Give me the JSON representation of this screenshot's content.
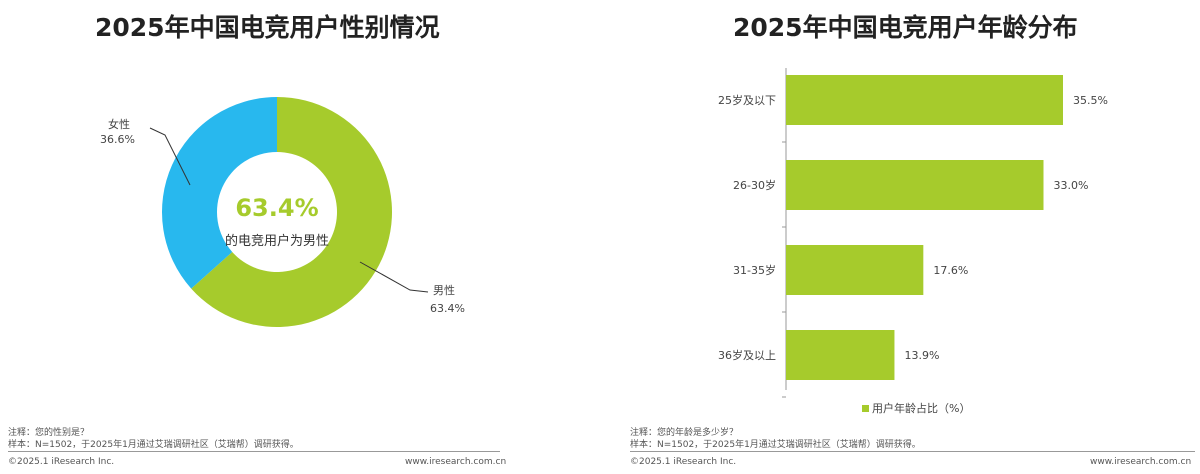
{
  "chart_data": [
    {
      "type": "pie",
      "title": "2025年中国电竞用户性别情况",
      "donut": true,
      "slices": [
        {
          "label": "男性",
          "value": 63.4,
          "display": "63.4%",
          "color": "#a6cb2c"
        },
        {
          "label": "女性",
          "value": 36.6,
          "display": "36.6%",
          "color": "#28b8ee"
        }
      ],
      "center_value": "63.4%",
      "center_text": "的电竞用户为男性",
      "note": "注释：您的性别是？",
      "sample": "样本：N=1502，于2025年1月通过艾瑞调研社区（艾瑞帮）调研获得。"
    },
    {
      "type": "bar",
      "orientation": "horizontal",
      "title": "2025年中国电竞用户年龄分布",
      "categories": [
        "25岁及以下",
        "26-30岁",
        "31-35岁",
        "36岁及以上"
      ],
      "values": [
        35.5,
        33.0,
        17.6,
        13.9
      ],
      "labels": [
        "35.5%",
        "33.0%",
        "17.6%",
        "13.9%"
      ],
      "color": "#a6cb2c",
      "legend": "用户年龄占比（%）",
      "legend_position": "bottom",
      "xlim": [
        0,
        40
      ],
      "note": "注释：您的年龄是多少岁？",
      "sample": "样本：N=1502，于2025年1月通过艾瑞调研社区（艾瑞帮）调研获得。"
    }
  ],
  "footer": {
    "copyright": "©2025.1 iResearch Inc.",
    "url": "www.iresearch.com.cn"
  }
}
